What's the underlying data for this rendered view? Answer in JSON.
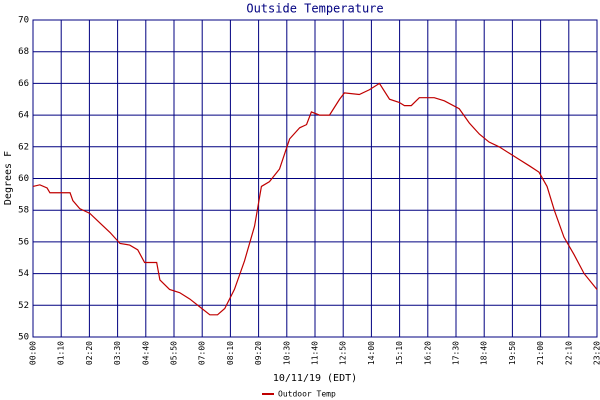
{
  "chart_data": {
    "type": "line",
    "title": "Outside Temperature",
    "x_label": "10/11/19 (EDT)",
    "y_label": "Degrees F",
    "xlim": [
      0,
      1400
    ],
    "ylim": [
      50,
      70
    ],
    "xticks": [
      {
        "value": 0,
        "label": "00:00"
      },
      {
        "value": 70,
        "label": "01:10"
      },
      {
        "value": 140,
        "label": "02:20"
      },
      {
        "value": 210,
        "label": "03:30"
      },
      {
        "value": 280,
        "label": "04:40"
      },
      {
        "value": 350,
        "label": "05:50"
      },
      {
        "value": 420,
        "label": "07:00"
      },
      {
        "value": 490,
        "label": "08:10"
      },
      {
        "value": 560,
        "label": "09:20"
      },
      {
        "value": 630,
        "label": "10:30"
      },
      {
        "value": 700,
        "label": "11:40"
      },
      {
        "value": 770,
        "label": "12:50"
      },
      {
        "value": 840,
        "label": "14:00"
      },
      {
        "value": 910,
        "label": "15:10"
      },
      {
        "value": 980,
        "label": "16:20"
      },
      {
        "value": 1050,
        "label": "17:30"
      },
      {
        "value": 1120,
        "label": "18:40"
      },
      {
        "value": 1190,
        "label": "19:50"
      },
      {
        "value": 1260,
        "label": "21:00"
      },
      {
        "value": 1330,
        "label": "22:10"
      },
      {
        "value": 1400,
        "label": "23:20"
      }
    ],
    "yticks": [
      50,
      52,
      54,
      56,
      58,
      60,
      62,
      64,
      66,
      68,
      70
    ],
    "grid": true,
    "legend": "bottom",
    "x": [
      0,
      17,
      35,
      42,
      92,
      99,
      116,
      141,
      166,
      191,
      216,
      240,
      260,
      277,
      307,
      315,
      339,
      364,
      389,
      414,
      439,
      458,
      476,
      500,
      525,
      550,
      567,
      587,
      612,
      637,
      662,
      679,
      691,
      711,
      736,
      761,
      773,
      810,
      835,
      860,
      885,
      909,
      922,
      939,
      959,
      996,
      1021,
      1058,
      1083,
      1108,
      1132,
      1157,
      1182,
      1207,
      1232,
      1256,
      1276,
      1294,
      1318,
      1343,
      1368,
      1400
    ],
    "series": [
      {
        "name": "Outdoor Temp",
        "color": "#c00000",
        "values": [
          59.5,
          59.6,
          59.4,
          59.1,
          59.1,
          58.6,
          58.1,
          57.8,
          57.2,
          56.6,
          55.9,
          55.8,
          55.5,
          54.7,
          54.7,
          53.6,
          53.0,
          52.8,
          52.4,
          51.9,
          51.4,
          51.4,
          51.8,
          53.0,
          54.8,
          57.0,
          59.5,
          59.8,
          60.6,
          62.5,
          63.2,
          63.4,
          64.2,
          64.0,
          64.0,
          65.0,
          65.4,
          65.3,
          65.6,
          66.0,
          65.0,
          64.8,
          64.6,
          64.6,
          65.1,
          65.1,
          64.9,
          64.4,
          63.5,
          62.8,
          62.3,
          62.0,
          61.6,
          61.2,
          60.8,
          60.4,
          59.5,
          58.0,
          56.3,
          55.2,
          54.0,
          53.0
        ]
      }
    ]
  }
}
